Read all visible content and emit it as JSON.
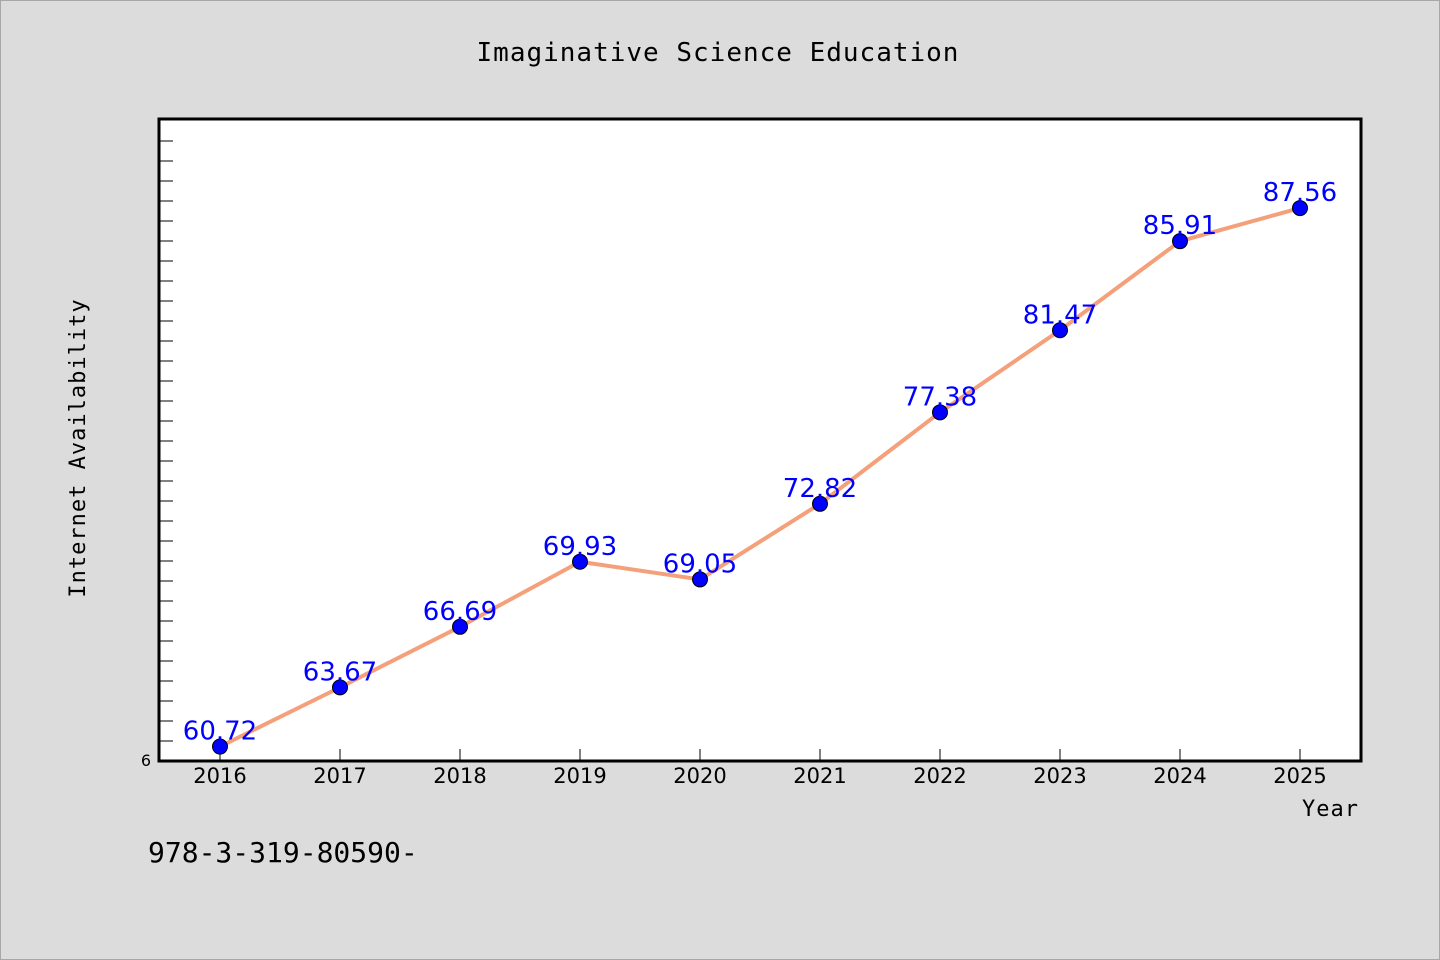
{
  "chart_data": {
    "type": "line",
    "title": "Imaginative Science Education",
    "xlabel": "Year",
    "ylabel": "Internet Availability",
    "categories": [
      "2016",
      "2017",
      "2018",
      "2019",
      "2020",
      "2021",
      "2022",
      "2023",
      "2024",
      "2025"
    ],
    "series": [
      {
        "values": [
          60.72,
          63.67,
          66.69,
          69.93,
          69.05,
          72.82,
          77.38,
          81.47,
          85.91,
          87.56
        ]
      }
    ],
    "data_labels": [
      "60.72",
      "63.67",
      "66.69",
      "69.93",
      "69.05",
      "72.82",
      "77.38",
      "81.47",
      "85.91",
      "87.56"
    ],
    "y_tick_label": "6",
    "ylim": [
      60,
      92
    ],
    "grid": false,
    "colors": {
      "line": "#f4a07a",
      "marker": "#0000ff",
      "label": "#0000ff",
      "plot_bg": "#ffffff",
      "page_bg": "#dcdcdc"
    }
  },
  "footer": {
    "text": "978-3-319-80590-"
  }
}
